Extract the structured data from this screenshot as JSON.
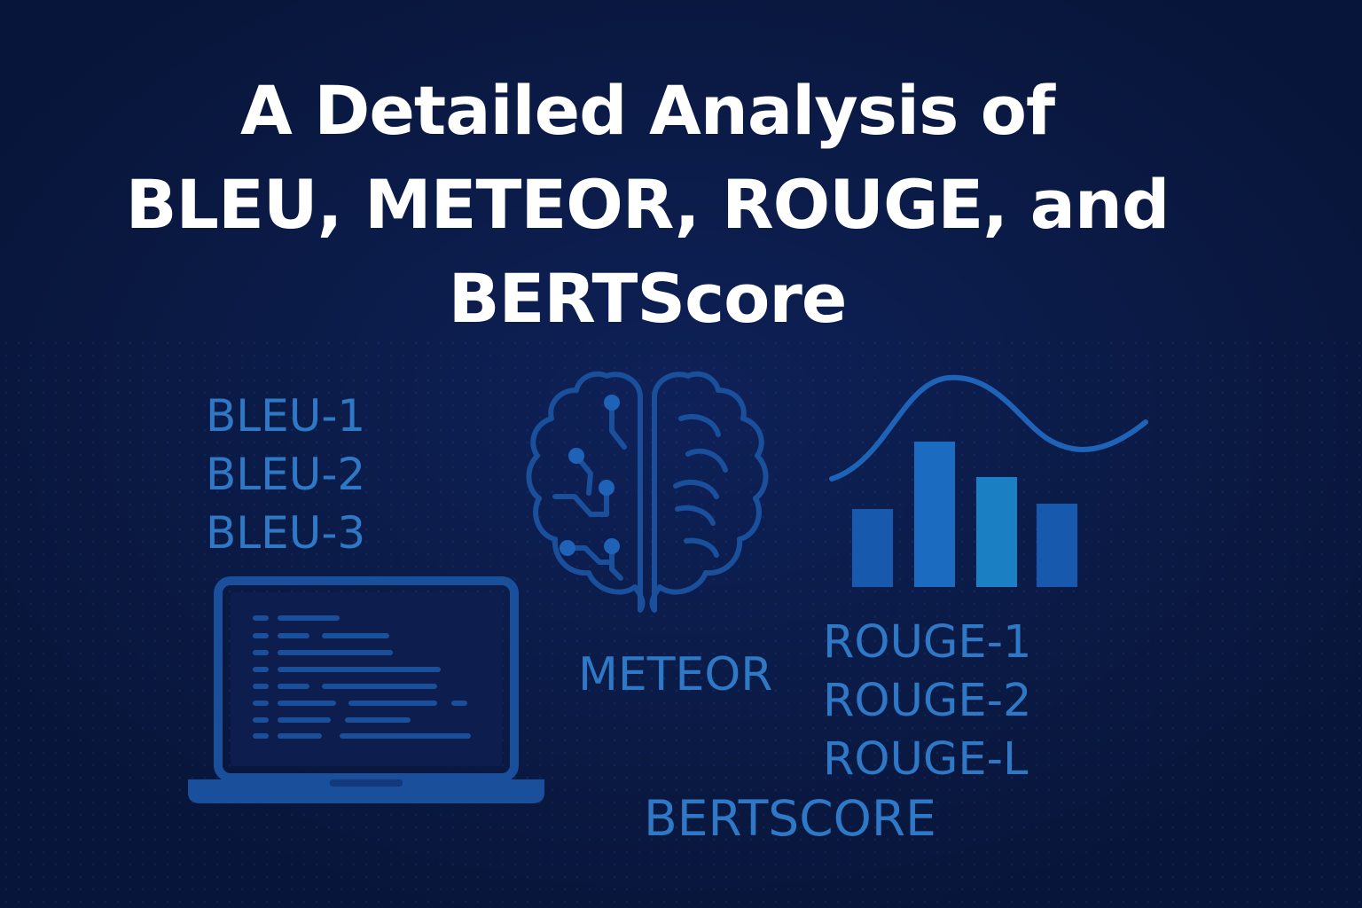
{
  "title": {
    "line1": "A Detailed Analysis of",
    "line2": "BLEU, METEOR, ROUGE, and",
    "line3": "BERTScore"
  },
  "bleu_labels": [
    "BLEU-1",
    "BLEU-2",
    "BLEU-3"
  ],
  "meteor_label": "METEOR",
  "rouge_labels": [
    "ROUGE-1",
    "ROUGE-2",
    "ROUGE-L"
  ],
  "bertscore_label": "BERTSCORE",
  "icons": {
    "laptop": "laptop-icon",
    "brain": "brain-icon",
    "chart": "bar-chart-icon"
  },
  "colors": {
    "background": "#0b1a48",
    "title": "#ffffff",
    "accent": "#2e78c6",
    "icon": "#1a4f9c",
    "bar_light": "#1b7fc4",
    "bar_dark": "#1659ad"
  }
}
